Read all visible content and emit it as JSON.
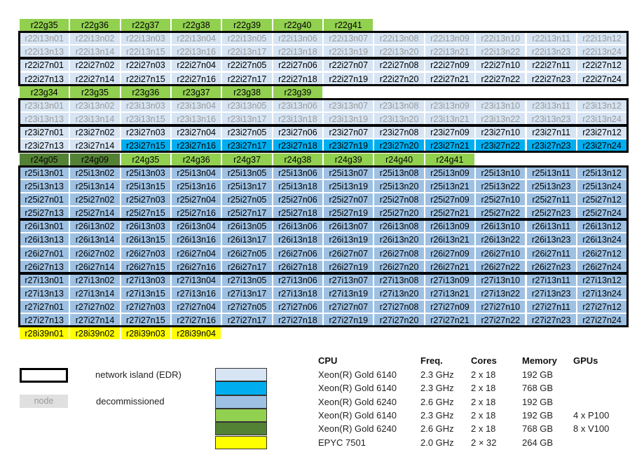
{
  "colors": {
    "gold6140_192": "#d6e4f3",
    "gold6140_768": "#00aeef",
    "gold6240_192": "#9ec1e3",
    "gpu_p100": "#92d050",
    "gpu_v100": "#548235",
    "epyc": "#ffff00",
    "decommissioned_bg": "#e0e0e0",
    "decommissioned_text": "#9a9a9a"
  },
  "rows": [
    {
      "type": "gpu_p100",
      "nodes": [
        "r22g35",
        "r22g36",
        "r22g37",
        "r22g38",
        "r22g39",
        "r22g40",
        "r22g41"
      ]
    },
    {
      "type": "gold6140_192",
      "decom": true,
      "nodes": [
        "r22i13n01",
        "r22i13n02",
        "r22i13n03",
        "r22i13n04",
        "r22i13n05",
        "r22i13n06",
        "r22i13n07",
        "r22i13n08",
        "r22i13n09",
        "r22i13n10",
        "r22i13n11",
        "r22i13n12"
      ]
    },
    {
      "type": "gold6140_192",
      "decom": true,
      "nodes": [
        "r22i13n13",
        "r22i13n14",
        "r22i13n15",
        "r22i13n16",
        "r22i13n17",
        "r22i13n18",
        "r22i13n19",
        "r22i13n20",
        "r22i13n21",
        "r22i13n22",
        "r22i13n23",
        "r22i13n24"
      ]
    },
    {
      "type": "gold6140_192",
      "nodes": [
        "r22i27n01",
        "r22i27n02",
        "r22i27n03",
        "r22i27n04",
        "r22i27n05",
        "r22i27n06",
        "r22i27n07",
        "r22i27n08",
        "r22i27n09",
        "r22i27n10",
        "r22i27n11",
        "r22i27n12"
      ]
    },
    {
      "type": "gold6140_192",
      "nodes": [
        "r22i27n13",
        "r22i27n14",
        "r22i27n15",
        "r22i27n16",
        "r22i27n17",
        "r22i27n18",
        "r22i27n19",
        "r22i27n20",
        "r22i27n21",
        "r22i27n22",
        "r22i27n23",
        "r22i27n24"
      ]
    },
    {
      "type": "gpu_p100",
      "nodes": [
        "r23g34",
        "r23g35",
        "r23g36",
        "r23g37",
        "r23g38",
        "r23g39"
      ]
    },
    {
      "type": "gold6140_192",
      "decom": true,
      "nodes": [
        "r23i13n01",
        "r23i13n02",
        "r23i13n03",
        "r23i13n04",
        "r23i13n05",
        "r23i13n06",
        "r23i13n07",
        "r23i13n08",
        "r23i13n09",
        "r23i13n10",
        "r23i13n11",
        "r23i13n12"
      ]
    },
    {
      "type": "gold6140_192",
      "decom": true,
      "nodes": [
        "r23i13n13",
        "r23i13n14",
        "r23i13n15",
        "r23i13n16",
        "r23i13n17",
        "r23i13n18",
        "r23i13n19",
        "r23i13n20",
        "r23i13n21",
        "r23i13n22",
        "r23i13n23",
        "r23i13n24"
      ]
    },
    {
      "type": "gold6140_192",
      "nodes": [
        "r23i27n01",
        "r23i27n02",
        "r23i27n03",
        "r23i27n04",
        "r23i27n05",
        "r23i27n06",
        "r23i27n07",
        "r23i27n08",
        "r23i27n09",
        "r23i27n10",
        "r23i27n11",
        "r23i27n12"
      ]
    },
    {
      "type": "gold6140_192",
      "types": [
        "gold6140_192",
        "gold6140_192",
        "gold6140_768",
        "gold6140_768",
        "gold6140_768",
        "gold6140_768",
        "gold6140_768",
        "gold6140_768",
        "gold6140_768",
        "gold6140_768",
        "gold6140_768",
        "gold6140_768"
      ],
      "nodes": [
        "r23i27n13",
        "r23i27n14",
        "r23i27n15",
        "r23i27n16",
        "r23i27n17",
        "r23i27n18",
        "r23i27n19",
        "r23i27n20",
        "r23i27n21",
        "r23i27n22",
        "r23i27n23",
        "r23i27n24"
      ]
    },
    {
      "type": "gpu_p100",
      "types": [
        "gpu_v100",
        "gpu_v100",
        "gpu_p100",
        "gpu_p100",
        "gpu_p100",
        "gpu_p100",
        "gpu_p100",
        "gpu_p100",
        "gpu_p100"
      ],
      "nodes": [
        "r24g05",
        "r24g09",
        "r24g35",
        "r24g36",
        "r24g37",
        "r24g38",
        "r24g39",
        "r24g40",
        "r24g41"
      ]
    },
    {
      "type": "gold6240_192",
      "nodes": [
        "r25i13n01",
        "r25i13n02",
        "r25i13n03",
        "r25i13n04",
        "r25i13n05",
        "r25i13n06",
        "r25i13n07",
        "r25i13n08",
        "r25i13n09",
        "r25i13n10",
        "r25i13n11",
        "r25i13n12"
      ]
    },
    {
      "type": "gold6240_192",
      "nodes": [
        "r25i13n13",
        "r25i13n14",
        "r25i13n15",
        "r25i13n16",
        "r25i13n17",
        "r25i13n18",
        "r25i13n19",
        "r25i13n20",
        "r25i13n21",
        "r25i13n22",
        "r25i13n23",
        "r25i13n24"
      ]
    },
    {
      "type": "gold6240_192",
      "nodes": [
        "r25i27n01",
        "r25i27n02",
        "r25i27n03",
        "r25i27n04",
        "r25i27n05",
        "r25i27n06",
        "r25i27n07",
        "r25i27n08",
        "r25i27n09",
        "r25i27n10",
        "r25i27n11",
        "r25i27n12"
      ]
    },
    {
      "type": "gold6240_192",
      "nodes": [
        "r25i27n13",
        "r25i27n14",
        "r25i27n15",
        "r25i27n16",
        "r25i27n17",
        "r25i27n18",
        "r25i27n19",
        "r25i27n20",
        "r25i27n21",
        "r25i27n22",
        "r25i27n23",
        "r25i27n24"
      ]
    },
    {
      "type": "gold6240_192",
      "nodes": [
        "r26i13n01",
        "r26i13n02",
        "r26i13n03",
        "r26i13n04",
        "r26i13n05",
        "r26i13n06",
        "r26i13n07",
        "r26i13n08",
        "r26i13n09",
        "r26i13n10",
        "r26i13n11",
        "r26i13n12"
      ]
    },
    {
      "type": "gold6240_192",
      "nodes": [
        "r26i13n13",
        "r26i13n14",
        "r26i13n15",
        "r26i13n16",
        "r26i13n17",
        "r26i13n18",
        "r26i13n19",
        "r26i13n20",
        "r26i13n21",
        "r26i13n22",
        "r26i13n23",
        "r26i13n24"
      ]
    },
    {
      "type": "gold6240_192",
      "nodes": [
        "r26i27n01",
        "r26i27n02",
        "r26i27n03",
        "r26i27n04",
        "r26i27n05",
        "r26i27n06",
        "r26i27n07",
        "r26i27n08",
        "r26i27n09",
        "r26i27n10",
        "r26i27n11",
        "r26i27n12"
      ]
    },
    {
      "type": "gold6240_192",
      "nodes": [
        "r26i27n13",
        "r26i27n14",
        "r26i27n15",
        "r26i27n16",
        "r26i27n17",
        "r26i27n18",
        "r26i27n19",
        "r26i27n20",
        "r26i27n21",
        "r26i27n22",
        "r26i27n23",
        "r26i27n24"
      ]
    },
    {
      "type": "gold6240_192",
      "nodes": [
        "r27i13n01",
        "r27i13n02",
        "r27i13n03",
        "r27i13n04",
        "r27i13n05",
        "r27i13n06",
        "r27i13n07",
        "r27i13n08",
        "r27i13n09",
        "r27i13n10",
        "r27i13n11",
        "r27i13n12"
      ]
    },
    {
      "type": "gold6240_192",
      "nodes": [
        "r27i13n13",
        "r27i13n14",
        "r27i13n15",
        "r27i13n16",
        "r27i13n17",
        "r27i13n18",
        "r27i13n19",
        "r27i13n20",
        "r27i13n21",
        "r27i13n22",
        "r27i13n23",
        "r27i13n24"
      ]
    },
    {
      "type": "gold6240_192",
      "nodes": [
        "r27i27n01",
        "r27i27n02",
        "r27i27n03",
        "r27i27n04",
        "r27i27n05",
        "r27i27n06",
        "r27i27n07",
        "r27i27n08",
        "r27i27n09",
        "r27i27n10",
        "r27i27n11",
        "r27i27n12"
      ]
    },
    {
      "type": "gold6240_192",
      "nodes": [
        "r27i27n13",
        "r27i27n14",
        "r27i27n15",
        "r27i27n16",
        "r27i27n17",
        "r27i27n18",
        "r27i27n19",
        "r27i27n20",
        "r27i27n21",
        "r27i27n22",
        "r27i27n23",
        "r27i27n24"
      ]
    },
    {
      "type": "epyc",
      "nodes": [
        "r28i39n01",
        "r28i39n02",
        "r28i39n03",
        "r28i39n04"
      ]
    }
  ],
  "islands": [
    [
      1,
      2
    ],
    [
      3,
      4
    ],
    [
      6,
      7
    ],
    [
      8,
      9
    ],
    [
      11,
      14
    ],
    [
      15,
      18
    ],
    [
      19,
      22
    ]
  ],
  "legend": {
    "island_label": "network island (EDR)",
    "decom_node_label": "node",
    "decom_label": "decommissioned"
  },
  "specs": {
    "headers": {
      "cpu": "CPU",
      "freq": "Freq.",
      "cores": "Cores",
      "memory": "Memory",
      "gpus": "GPUs"
    },
    "rows": [
      {
        "swatch": "gold6140_192",
        "cpu": "Xeon(R) Gold 6140",
        "freq": "2.3 GHz",
        "cores": "2 x 18",
        "memory": "192 GB",
        "gpus": ""
      },
      {
        "swatch": "gold6140_768",
        "cpu": "Xeon(R) Gold 6140",
        "freq": "2.3 GHz",
        "cores": "2 x 18",
        "memory": "768 GB",
        "gpus": ""
      },
      {
        "swatch": "gold6240_192",
        "cpu": "Xeon(R) Gold 6240",
        "freq": "2.6 GHz",
        "cores": "2 x 18",
        "memory": "192 GB",
        "gpus": ""
      },
      {
        "swatch": "gpu_p100",
        "cpu": "Xeon(R) Gold 6140",
        "freq": "2.3 GHz",
        "cores": "2 x 18",
        "memory": "192 GB",
        "gpus": "4 x P100"
      },
      {
        "swatch": "gpu_v100",
        "cpu": "Xeon(R) Gold 6240",
        "freq": "2.6 GHz",
        "cores": "2 x 18",
        "memory": "768 GB",
        "gpus": "8 x V100"
      },
      {
        "swatch": "epyc",
        "cpu": "EPYC 7501",
        "freq": "2.0 GHz",
        "cores": "2 × 32",
        "memory": "264 GB",
        "gpus": ""
      }
    ]
  }
}
